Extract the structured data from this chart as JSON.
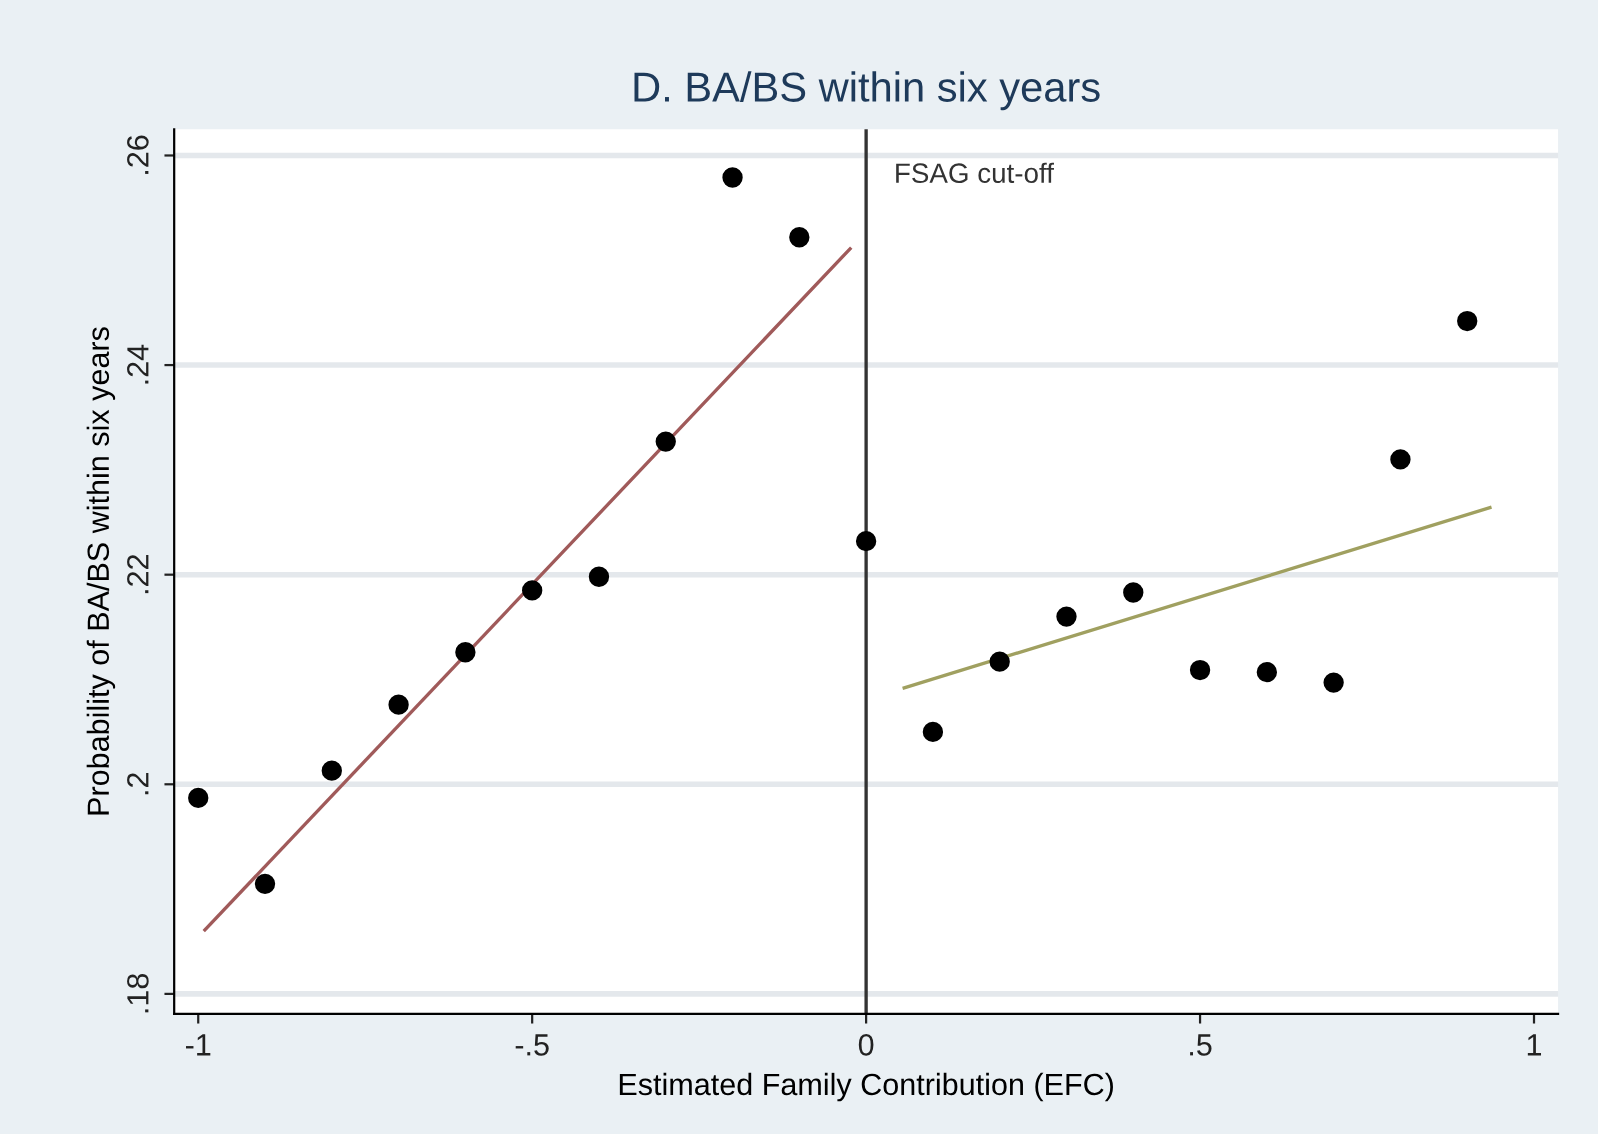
{
  "chart_data": {
    "type": "scatter",
    "title": "D. BA/BS within six years",
    "xlabel": "Estimated Family Contribution (EFC)",
    "ylabel": "Probability of BA/BS within six years",
    "series": [
      {
        "marker": "circle",
        "color": "#000000",
        "x": [
          -1,
          -0.9,
          -0.8,
          -0.7,
          -0.6,
          -0.5,
          -0.4,
          -0.3,
          -0.2,
          -0.1,
          0,
          0.1,
          0.2,
          0.3,
          0.4,
          0.5,
          0.6,
          0.7,
          0.8,
          0.9
        ],
        "values": [
          0.1987,
          0.1905,
          0.2013,
          0.2076,
          0.2126,
          0.2185,
          0.2198,
          0.2327,
          0.2579,
          0.2522,
          0.2232,
          0.205,
          0.2117,
          0.216,
          0.2183,
          0.2109,
          0.2107,
          0.2097,
          0.231,
          0.2442
        ]
      },
      {
        "type": "line",
        "marker": "none",
        "color": "#a05a5a",
        "x": [
          -0.99,
          -0.024
        ],
        "values": [
          0.1861,
          0.2511
        ]
      },
      {
        "type": "line",
        "marker": "none",
        "color": "#a0a060",
        "x": [
          0.057,
          0.934
        ],
        "values": [
          0.2092,
          0.2264
        ]
      }
    ],
    "xlim": [
      -1.036,
      1.036
    ],
    "xticks": [
      -1,
      {
        "value": -0.5,
        "label": "-.5"
      },
      0,
      {
        "value": 0.5,
        "label": ".5"
      },
      1
    ],
    "ylim": [
      0.1781,
      0.2625
    ],
    "yticks": [
      {
        "value": 0.18,
        "label": ".18"
      },
      {
        "value": 0.2,
        "label": ".2"
      },
      {
        "value": 0.22,
        "label": ".22"
      },
      {
        "value": 0.24,
        "label": ".24"
      },
      {
        "value": 0.26,
        "label": ".26"
      }
    ],
    "grid": "y",
    "ref_lines": [
      {
        "axis": "x",
        "value": 0,
        "label": "FSAG cut-off",
        "color": "#333333"
      }
    ]
  }
}
